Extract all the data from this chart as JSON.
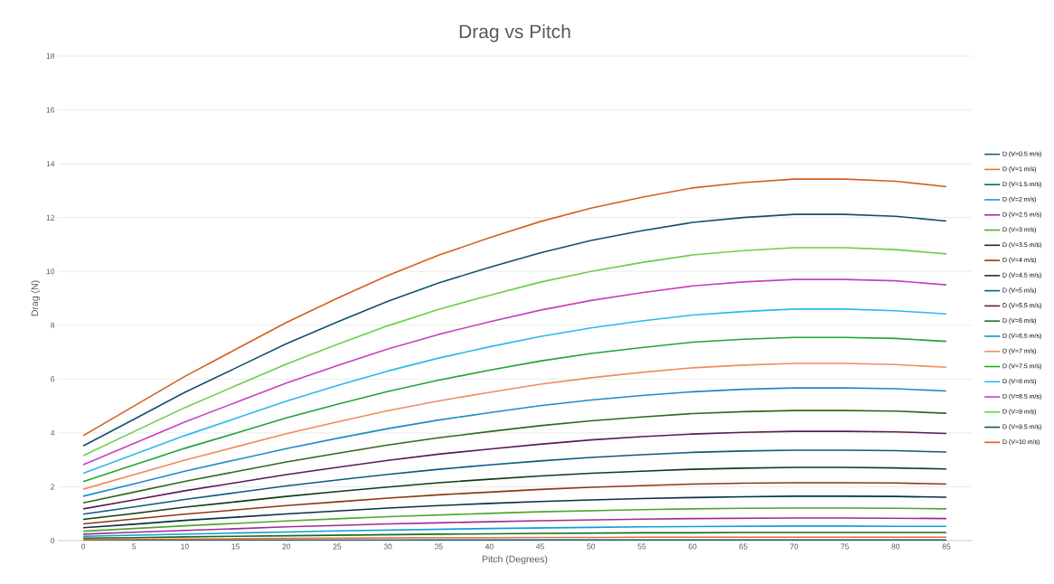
{
  "chart_data": {
    "type": "line",
    "title": "Drag vs Pitch",
    "xlabel": "Pitch (Degrees)",
    "ylabel": "Drag (N)",
    "categories": [
      "0",
      "5",
      "10",
      "15",
      "20",
      "25",
      "30",
      "35",
      "40",
      "45",
      "50",
      "55",
      "60",
      "65",
      "70",
      "75",
      "80",
      "85"
    ],
    "ylim": [
      0,
      18
    ],
    "yticks": [
      0,
      2,
      4,
      6,
      8,
      10,
      12,
      14,
      16,
      18
    ],
    "grid": "y",
    "legend": "right",
    "marker": "none",
    "line_style": "solid",
    "series": [
      {
        "name": "D (V=0.5 m/s)",
        "color": "#156082",
        "values": [
          0.01,
          0.01,
          0.02,
          0.02,
          0.02,
          0.02,
          0.02,
          0.03,
          0.03,
          0.03,
          0.03,
          0.03,
          0.03,
          0.03,
          0.03,
          0.03,
          0.03,
          0.03
        ]
      },
      {
        "name": "D (V=1 m/s)",
        "color": "#e97132",
        "values": [
          0.04,
          0.05,
          0.06,
          0.07,
          0.08,
          0.09,
          0.1,
          0.11,
          0.11,
          0.12,
          0.12,
          0.13,
          0.13,
          0.13,
          0.13,
          0.13,
          0.13,
          0.13
        ]
      },
      {
        "name": "D (V=1.5 m/s)",
        "color": "#196b24",
        "values": [
          0.09,
          0.11,
          0.14,
          0.16,
          0.18,
          0.2,
          0.22,
          0.24,
          0.25,
          0.27,
          0.28,
          0.29,
          0.29,
          0.3,
          0.3,
          0.3,
          0.3,
          0.3
        ]
      },
      {
        "name": "D (V=2 m/s)",
        "color": "#0f9ed5",
        "values": [
          0.16,
          0.2,
          0.24,
          0.28,
          0.32,
          0.36,
          0.39,
          0.42,
          0.45,
          0.47,
          0.49,
          0.51,
          0.52,
          0.53,
          0.54,
          0.54,
          0.53,
          0.53
        ]
      },
      {
        "name": "D (V=2.5 m/s)",
        "color": "#a02b93",
        "values": [
          0.24,
          0.31,
          0.38,
          0.44,
          0.51,
          0.56,
          0.62,
          0.66,
          0.7,
          0.74,
          0.77,
          0.8,
          0.82,
          0.83,
          0.84,
          0.84,
          0.83,
          0.82
        ]
      },
      {
        "name": "D (V=3 m/s)",
        "color": "#4ea72e",
        "values": [
          0.35,
          0.45,
          0.55,
          0.64,
          0.73,
          0.81,
          0.89,
          0.95,
          1.01,
          1.07,
          1.11,
          1.15,
          1.18,
          1.2,
          1.21,
          1.21,
          1.2,
          1.18
        ]
      },
      {
        "name": "D (V=3.5 m/s)",
        "color": "#0b3041",
        "values": [
          0.48,
          0.61,
          0.75,
          0.87,
          0.99,
          1.1,
          1.21,
          1.3,
          1.38,
          1.45,
          1.51,
          1.56,
          1.6,
          1.63,
          1.65,
          1.65,
          1.64,
          1.61
        ]
      },
      {
        "name": "D (V=4 m/s)",
        "color": "#8b3a0f",
        "values": [
          0.62,
          0.8,
          0.98,
          1.14,
          1.3,
          1.44,
          1.58,
          1.7,
          1.8,
          1.9,
          1.98,
          2.04,
          2.1,
          2.13,
          2.15,
          2.15,
          2.14,
          2.1
        ]
      },
      {
        "name": "D (V=4.5 m/s)",
        "color": "#0f3d14",
        "values": [
          0.79,
          1.01,
          1.24,
          1.44,
          1.64,
          1.82,
          1.99,
          2.15,
          2.28,
          2.4,
          2.5,
          2.58,
          2.65,
          2.69,
          2.72,
          2.72,
          2.7,
          2.66
        ]
      },
      {
        "name": "D (V=5 m/s)",
        "color": "#0d5a7c",
        "values": [
          0.98,
          1.25,
          1.53,
          1.78,
          2.03,
          2.25,
          2.46,
          2.65,
          2.81,
          2.96,
          3.09,
          3.19,
          3.28,
          3.33,
          3.36,
          3.36,
          3.34,
          3.29
        ]
      },
      {
        "name": "D (V=5.5 m/s)",
        "color": "#5c1a55",
        "values": [
          1.18,
          1.51,
          1.85,
          2.15,
          2.45,
          2.72,
          2.98,
          3.21,
          3.4,
          3.58,
          3.74,
          3.86,
          3.96,
          4.02,
          4.06,
          4.06,
          4.04,
          3.98
        ]
      },
      {
        "name": "D (V=6 m/s)",
        "color": "#2f6a1e",
        "values": [
          1.4,
          1.8,
          2.2,
          2.56,
          2.92,
          3.24,
          3.55,
          3.82,
          4.05,
          4.27,
          4.45,
          4.59,
          4.72,
          4.79,
          4.83,
          4.83,
          4.81,
          4.73
        ]
      },
      {
        "name": "D (V=6.5 m/s)",
        "color": "#1e8cc4",
        "values": [
          1.65,
          2.11,
          2.58,
          3.0,
          3.42,
          3.8,
          4.16,
          4.48,
          4.75,
          5.01,
          5.22,
          5.39,
          5.53,
          5.62,
          5.67,
          5.67,
          5.64,
          5.56
        ]
      },
      {
        "name": "D (V=7 m/s)",
        "color": "#ef8c5c",
        "values": [
          1.91,
          2.45,
          2.99,
          3.48,
          3.97,
          4.41,
          4.83,
          5.19,
          5.51,
          5.81,
          6.05,
          6.25,
          6.42,
          6.52,
          6.58,
          6.58,
          6.54,
          6.44
        ]
      },
      {
        "name": "D (V=7.5 m/s)",
        "color": "#22a334",
        "values": [
          2.19,
          2.81,
          3.43,
          3.99,
          4.56,
          5.06,
          5.54,
          5.96,
          6.33,
          6.67,
          6.95,
          7.17,
          7.37,
          7.48,
          7.55,
          7.55,
          7.51,
          7.4
        ]
      },
      {
        "name": "D (V=8 m/s)",
        "color": "#2bb9ee",
        "values": [
          2.5,
          3.2,
          3.9,
          4.54,
          5.18,
          5.76,
          6.3,
          6.78,
          7.2,
          7.58,
          7.9,
          8.16,
          8.38,
          8.51,
          8.6,
          8.6,
          8.54,
          8.42
        ]
      },
      {
        "name": "D (V=8.5 m/s)",
        "color": "#c93fbe",
        "values": [
          2.82,
          3.61,
          4.41,
          5.13,
          5.85,
          6.5,
          7.12,
          7.66,
          8.13,
          8.56,
          8.92,
          9.21,
          9.46,
          9.61,
          9.7,
          9.7,
          9.65,
          9.5
        ]
      },
      {
        "name": "D (V=9 m/s)",
        "color": "#6ccd4c",
        "values": [
          3.16,
          4.05,
          4.94,
          5.75,
          6.56,
          7.29,
          7.98,
          8.59,
          9.11,
          9.6,
          10.0,
          10.33,
          10.61,
          10.77,
          10.88,
          10.88,
          10.81,
          10.65
        ]
      },
      {
        "name": "D (V=9.5 m/s)",
        "color": "#10506e",
        "values": [
          3.52,
          4.51,
          5.51,
          6.41,
          7.31,
          8.12,
          8.89,
          9.57,
          10.15,
          10.69,
          11.15,
          11.51,
          11.82,
          12.0,
          12.12,
          12.12,
          12.05,
          11.87
        ]
      },
      {
        "name": "D (V=10 m/s)",
        "color": "#d4601c",
        "values": [
          3.9,
          5.0,
          6.1,
          7.1,
          8.1,
          9.0,
          9.85,
          10.6,
          11.25,
          11.85,
          12.35,
          12.75,
          13.1,
          13.3,
          13.43,
          13.43,
          13.35,
          13.15
        ]
      }
    ]
  }
}
